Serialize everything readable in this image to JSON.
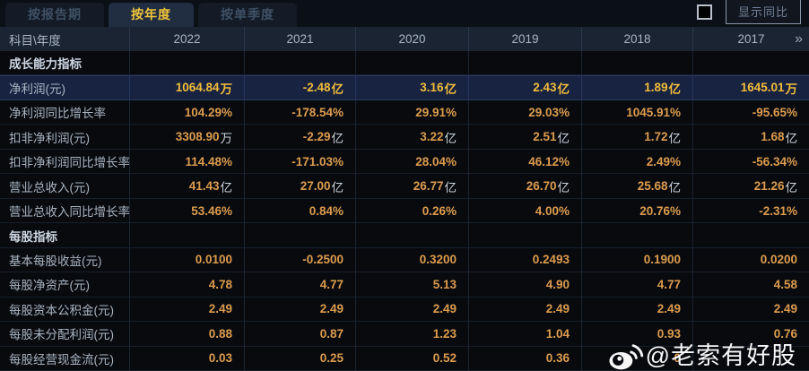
{
  "tabs": [
    {
      "label": "按报告期",
      "active": false
    },
    {
      "label": "按年度",
      "active": true
    },
    {
      "label": "按单季度",
      "active": false
    }
  ],
  "controls": {
    "show_yoy_label": "显示同比",
    "checkbox_checked": false
  },
  "table": {
    "corner": "科目\\年度",
    "years": [
      "2022",
      "2021",
      "2020",
      "2019",
      "2018",
      "2017"
    ],
    "more_icon": "»",
    "rows": [
      {
        "type": "section",
        "label": "成长能力指标",
        "values": [
          "",
          "",
          "",
          "",
          "",
          ""
        ]
      },
      {
        "type": "highlight",
        "label": "净利润(元)",
        "values": [
          "1064.84万",
          "-2.48亿",
          "3.16亿",
          "2.43亿",
          "1.89亿",
          "1645.01万"
        ]
      },
      {
        "type": "data",
        "label": "净利润同比增长率",
        "values": [
          "104.29%",
          "-178.54%",
          "29.91%",
          "29.03%",
          "1045.91%",
          "-95.65%"
        ]
      },
      {
        "type": "data",
        "label": "扣非净利润(元)",
        "values": [
          "3308.90万",
          "-2.29亿",
          "3.22亿",
          "2.51亿",
          "1.72亿",
          "1.68亿"
        ]
      },
      {
        "type": "data",
        "label": "扣非净利润同比增长率",
        "values": [
          "114.48%",
          "-171.03%",
          "28.04%",
          "46.12%",
          "2.49%",
          "-56.34%"
        ]
      },
      {
        "type": "data",
        "label": "营业总收入(元)",
        "values": [
          "41.43亿",
          "27.00亿",
          "26.77亿",
          "26.70亿",
          "25.68亿",
          "21.26亿"
        ]
      },
      {
        "type": "data",
        "label": "营业总收入同比增长率",
        "values": [
          "53.46%",
          "0.84%",
          "0.26%",
          "4.00%",
          "20.76%",
          "-2.31%"
        ]
      },
      {
        "type": "section",
        "label": "每股指标",
        "values": [
          "",
          "",
          "",
          "",
          "",
          ""
        ]
      },
      {
        "type": "data",
        "label": "基本每股收益(元)",
        "values": [
          "0.0100",
          "-0.2500",
          "0.3200",
          "0.2493",
          "0.1900",
          "0.0200"
        ]
      },
      {
        "type": "data",
        "label": "每股净资产(元)",
        "values": [
          "4.78",
          "4.77",
          "5.13",
          "4.90",
          "4.77",
          "4.58"
        ]
      },
      {
        "type": "data",
        "label": "每股资本公积金(元)",
        "values": [
          "2.49",
          "2.49",
          "2.49",
          "2.49",
          "2.49",
          "2.49"
        ]
      },
      {
        "type": "data",
        "label": "每股未分配利润(元)",
        "values": [
          "0.88",
          "0.87",
          "1.23",
          "1.04",
          "0.93",
          "0.76"
        ]
      },
      {
        "type": "data",
        "label": "每股经营现金流(元)",
        "values": [
          "0.03",
          "0.25",
          "0.52",
          "0.36",
          "0",
          ""
        ]
      }
    ]
  },
  "watermark": {
    "text": "@老索有好股",
    "icon": "weibo-icon"
  },
  "colors": {
    "accent_gold": "#f0c43c",
    "value_orange": "#dd9c4e",
    "highlight_row_bg": "#182342",
    "header_bg": "#1a2432",
    "tab_inactive_text": "#3f5064"
  }
}
